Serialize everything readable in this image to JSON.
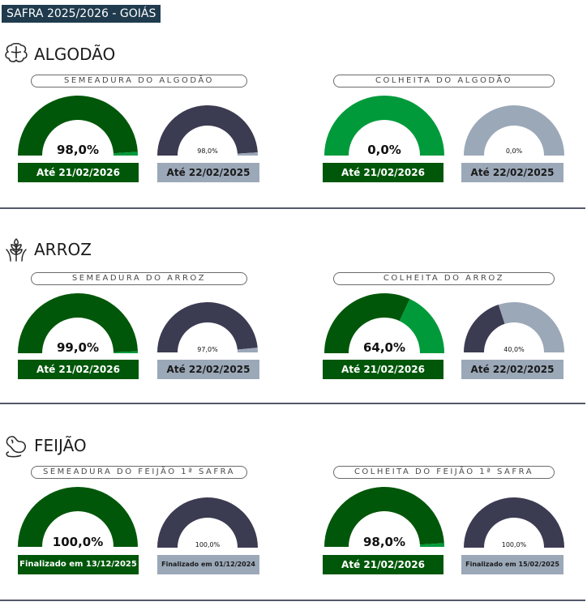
{
  "header": {
    "title": "SAFRA 2025/2026 - GOIÁS"
  },
  "colors": {
    "dark_green": "#005709",
    "bright_green": "#009a3b",
    "navy": "#3b3b52",
    "grey_track": "#9ba8b8",
    "grey_bar": "#9ba8b8",
    "divider": "#53596a"
  },
  "sections": [
    {
      "title": "ALGODÃO",
      "icon": "cotton-icon",
      "panels": [
        {
          "label": "SEMEADURA DO ALGODÃO",
          "current": {
            "value": 98.0,
            "text": "98,0%",
            "date": "Até 21/02/2026"
          },
          "previous": {
            "value": 98.0,
            "text": "98,0%",
            "date": "Até 22/02/2025"
          }
        },
        {
          "label": "COLHEITA DO ALGODÃO",
          "current": {
            "value": 0.0,
            "text": "0,0%",
            "date": "Até 21/02/2026"
          },
          "previous": {
            "value": 0.0,
            "text": "0,0%",
            "date": "Até 22/02/2025"
          }
        }
      ]
    },
    {
      "title": "ARROZ",
      "icon": "rice-icon",
      "panels": [
        {
          "label": "SEMEADURA DO ARROZ",
          "current": {
            "value": 99.0,
            "text": "99,0%",
            "date": "Até 21/02/2026"
          },
          "previous": {
            "value": 97.0,
            "text": "97,0%",
            "date": "Até 22/02/2025"
          }
        },
        {
          "label": "COLHEITA DO ARROZ",
          "current": {
            "value": 64.0,
            "text": "64,0%",
            "date": "Até 21/02/2026"
          },
          "previous": {
            "value": 40.0,
            "text": "40,0%",
            "date": "Até 22/02/2025"
          }
        }
      ]
    },
    {
      "title": "FEIJÃO",
      "icon": "bean-icon",
      "panels": [
        {
          "label": "SEMEADURA DO FEIJÃO 1ª SAFRA",
          "current": {
            "value": 100.0,
            "text": "100,0%",
            "date": "Finalizado em 13/12/2025"
          },
          "previous": {
            "value": 100.0,
            "text": "100,0%",
            "date": "Finalizado em 01/12/2024"
          }
        },
        {
          "label": "COLHEITA DO FEIJÃO 1ª SAFRA",
          "current": {
            "value": 98.0,
            "text": "98,0%",
            "date": "Até 21/02/2026"
          },
          "previous": {
            "value": 100.0,
            "text": "100,0%",
            "date": "Finalizado em 15/02/2025"
          }
        }
      ]
    }
  ]
}
